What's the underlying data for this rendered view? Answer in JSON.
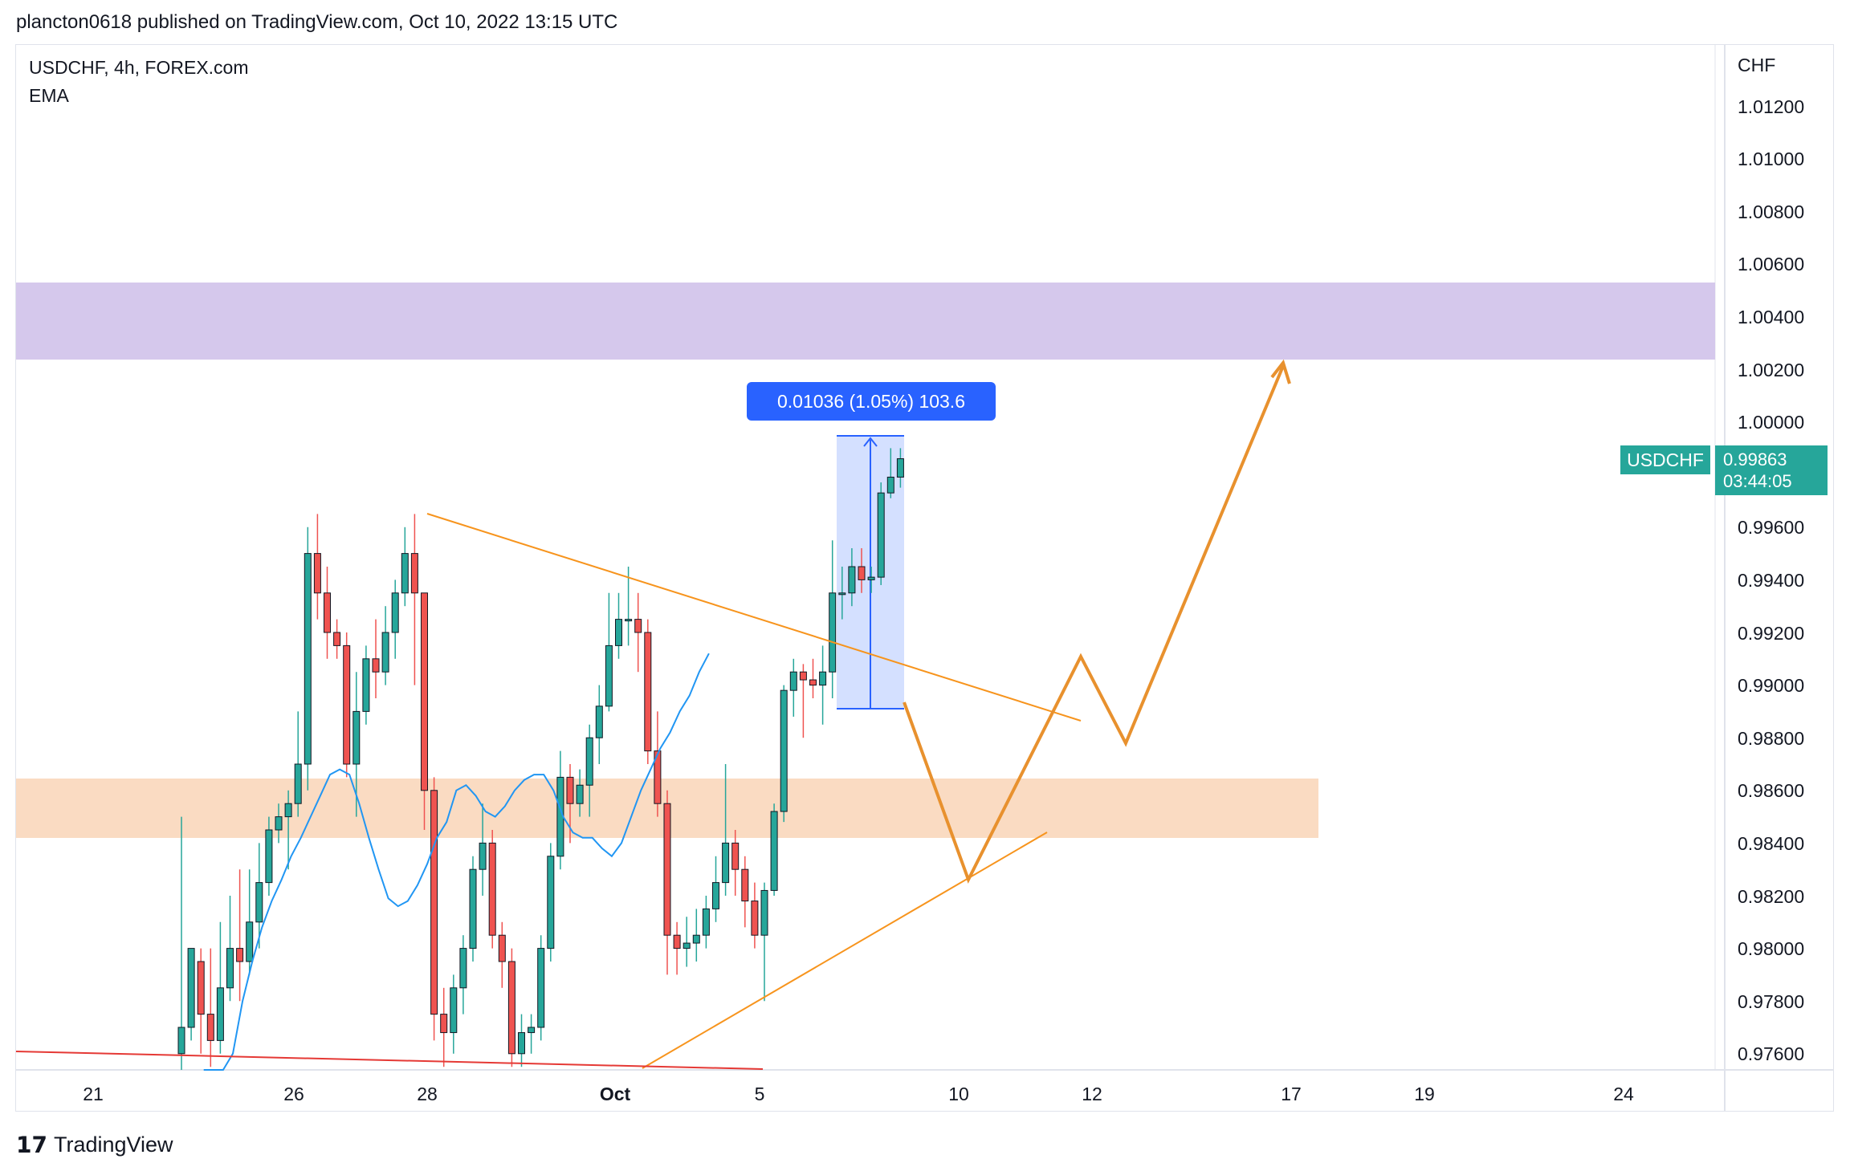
{
  "header": {
    "published_text": "plancton0618 published on TradingView.com, Oct 10, 2022 13:15 UTC"
  },
  "legend": {
    "symbol_line": "USDCHF, 4h, FOREX.com",
    "indicator": "EMA"
  },
  "footer": {
    "brand": "TradingView",
    "logo_icon": "tradingview-logo-icon"
  },
  "colors": {
    "up_candle": "#26a69a",
    "down_candle": "#ef5350",
    "ema_line": "#2196f3",
    "resistance_zone": "#d5c8ec",
    "support_zone": "#fadbc2",
    "trendline": "#f7941d",
    "projection": "#e8912e",
    "red_trendline": "#e53935",
    "measure_box": "#2962ff",
    "price_tag": "#26a69a"
  },
  "chart_data": {
    "type": "candlestick",
    "symbol": "USDCHF",
    "interval": "4h",
    "currency_label": "CHF",
    "ylim": [
      0.9755,
      1.0145
    ],
    "y_ticks": [
      "1.01200",
      "1.01000",
      "1.00800",
      "1.00600",
      "1.00400",
      "1.00200",
      "1.00000",
      "0.99600",
      "0.99400",
      "0.99200",
      "0.99000",
      "0.98800",
      "0.98600",
      "0.98400",
      "0.98200",
      "0.98000",
      "0.97800",
      "0.97600"
    ],
    "x_ticks": [
      {
        "label": "21",
        "bold": false
      },
      {
        "label": "26",
        "bold": false
      },
      {
        "label": "28",
        "bold": false
      },
      {
        "label": "Oct",
        "bold": true
      },
      {
        "label": "5",
        "bold": false
      },
      {
        "label": "10",
        "bold": false
      },
      {
        "label": "12",
        "bold": false
      },
      {
        "label": "17",
        "bold": false
      },
      {
        "label": "19",
        "bold": false
      },
      {
        "label": "24",
        "bold": false
      }
    ],
    "candles": [
      [
        0.976,
        0.977,
        0.975,
        0.985
      ],
      [
        0.977,
        0.98,
        0.9765,
        0.98
      ],
      [
        0.9795,
        0.9775,
        0.976,
        0.98
      ],
      [
        0.9775,
        0.9765,
        0.9755,
        0.98
      ],
      [
        0.9765,
        0.9785,
        0.976,
        0.981
      ],
      [
        0.9785,
        0.98,
        0.978,
        0.982
      ],
      [
        0.98,
        0.9795,
        0.978,
        0.983
      ],
      [
        0.9795,
        0.981,
        0.979,
        0.983
      ],
      [
        0.981,
        0.9825,
        0.98,
        0.984
      ],
      [
        0.9825,
        0.9845,
        0.982,
        0.985
      ],
      [
        0.9845,
        0.985,
        0.984,
        0.9855
      ],
      [
        0.985,
        0.9855,
        0.983,
        0.986
      ],
      [
        0.9855,
        0.987,
        0.985,
        0.989
      ],
      [
        0.987,
        0.995,
        0.986,
        0.996
      ],
      [
        0.995,
        0.9935,
        0.9925,
        0.9965
      ],
      [
        0.9935,
        0.992,
        0.991,
        0.9945
      ],
      [
        0.992,
        0.9915,
        0.991,
        0.9925
      ],
      [
        0.9915,
        0.987,
        0.9865,
        0.992
      ],
      [
        0.987,
        0.989,
        0.985,
        0.9905
      ],
      [
        0.989,
        0.991,
        0.9885,
        0.9915
      ],
      [
        0.991,
        0.9905,
        0.9895,
        0.9925
      ],
      [
        0.9905,
        0.992,
        0.99,
        0.993
      ],
      [
        0.992,
        0.9935,
        0.991,
        0.994
      ],
      [
        0.9935,
        0.995,
        0.993,
        0.996
      ],
      [
        0.995,
        0.9935,
        0.99,
        0.9965
      ],
      [
        0.9935,
        0.986,
        0.9845,
        0.9935
      ],
      [
        0.986,
        0.9775,
        0.9765,
        0.9865
      ],
      [
        0.9775,
        0.9768,
        0.9755,
        0.9785
      ],
      [
        0.9768,
        0.9785,
        0.976,
        0.979
      ],
      [
        0.9785,
        0.98,
        0.9775,
        0.9805
      ],
      [
        0.98,
        0.983,
        0.9795,
        0.9835
      ],
      [
        0.983,
        0.984,
        0.982,
        0.9855
      ],
      [
        0.984,
        0.9805,
        0.98,
        0.9845
      ],
      [
        0.9805,
        0.9795,
        0.9785,
        0.981
      ],
      [
        0.9795,
        0.976,
        0.9755,
        0.98
      ],
      [
        0.976,
        0.9768,
        0.9755,
        0.9775
      ],
      [
        0.9768,
        0.977,
        0.976,
        0.9775
      ],
      [
        0.977,
        0.98,
        0.9765,
        0.9805
      ],
      [
        0.98,
        0.9835,
        0.9795,
        0.984
      ],
      [
        0.9835,
        0.9865,
        0.983,
        0.9875
      ],
      [
        0.9865,
        0.9855,
        0.984,
        0.987
      ],
      [
        0.9855,
        0.9862,
        0.985,
        0.9868
      ],
      [
        0.9862,
        0.988,
        0.985,
        0.9885
      ],
      [
        0.988,
        0.9892,
        0.987,
        0.99
      ],
      [
        0.9892,
        0.9915,
        0.989,
        0.9935
      ],
      [
        0.9915,
        0.9925,
        0.991,
        0.9935
      ],
      [
        0.9925,
        0.9925,
        0.9915,
        0.9945
      ],
      [
        0.9925,
        0.992,
        0.9905,
        0.9935
      ],
      [
        0.992,
        0.9875,
        0.987,
        0.9925
      ],
      [
        0.9875,
        0.9855,
        0.985,
        0.989
      ],
      [
        0.9855,
        0.9805,
        0.979,
        0.986
      ],
      [
        0.9805,
        0.98,
        0.979,
        0.981
      ],
      [
        0.98,
        0.9802,
        0.9793,
        0.9812
      ],
      [
        0.9802,
        0.9805,
        0.9795,
        0.9815
      ],
      [
        0.9805,
        0.9815,
        0.98,
        0.982
      ],
      [
        0.9815,
        0.9825,
        0.981,
        0.9835
      ],
      [
        0.9825,
        0.984,
        0.982,
        0.987
      ],
      [
        0.984,
        0.983,
        0.982,
        0.9845
      ],
      [
        0.983,
        0.9818,
        0.9808,
        0.9835
      ],
      [
        0.9818,
        0.9805,
        0.98,
        0.9825
      ],
      [
        0.9805,
        0.9822,
        0.978,
        0.9825
      ],
      [
        0.9822,
        0.9852,
        0.982,
        0.9855
      ],
      [
        0.9852,
        0.9898,
        0.9848,
        0.99
      ],
      [
        0.9898,
        0.9905,
        0.9888,
        0.991
      ],
      [
        0.9905,
        0.9902,
        0.988,
        0.9908
      ],
      [
        0.9902,
        0.99,
        0.9895,
        0.991
      ],
      [
        0.99,
        0.9905,
        0.9885,
        0.9915
      ],
      [
        0.9905,
        0.9935,
        0.9895,
        0.9955
      ],
      [
        0.9935,
        0.9935,
        0.9925,
        0.9945
      ],
      [
        0.9935,
        0.9945,
        0.993,
        0.9952
      ],
      [
        0.9945,
        0.994,
        0.9935,
        0.9952
      ],
      [
        0.994,
        0.9941,
        0.9935,
        0.9945
      ],
      [
        0.9941,
        0.9973,
        0.9938,
        0.9977
      ],
      [
        0.9973,
        0.9979,
        0.9971,
        0.999
      ],
      [
        0.9979,
        0.9986,
        0.9975,
        0.999
      ]
    ],
    "ema_series": [
      0.97,
      0.972,
      0.974,
      0.976,
      0.978,
      0.9795,
      0.9808,
      0.9818,
      0.9826,
      0.9835,
      0.9842,
      0.985,
      0.9858,
      0.9866,
      0.9868,
      0.9866,
      0.9855,
      0.9842,
      0.983,
      0.9819,
      0.9816,
      0.9818,
      0.9824,
      0.9832,
      0.9842,
      0.9848,
      0.986,
      0.9862,
      0.9858,
      0.9852,
      0.985,
      0.9854,
      0.986,
      0.9864,
      0.9866,
      0.9866,
      0.986,
      0.985,
      0.9844,
      0.9842,
      0.9842,
      0.9838,
      0.9835,
      0.984,
      0.985,
      0.986,
      0.9868,
      0.9876,
      0.9882,
      0.989,
      0.9896,
      0.9905,
      0.9912
    ],
    "zones": [
      {
        "name": "resistance",
        "y0": 1.0025,
        "y1": 1.0054
      },
      {
        "name": "support",
        "y0": 0.9843,
        "y1": 0.9865
      }
    ],
    "measurement": {
      "label": "0.01036 (1.05%) 103.6",
      "from": 0.9892,
      "to": 0.99956
    },
    "last_price": {
      "label": "USDCHF",
      "price": "0.99863",
      "countdown": "03:44:05"
    }
  }
}
